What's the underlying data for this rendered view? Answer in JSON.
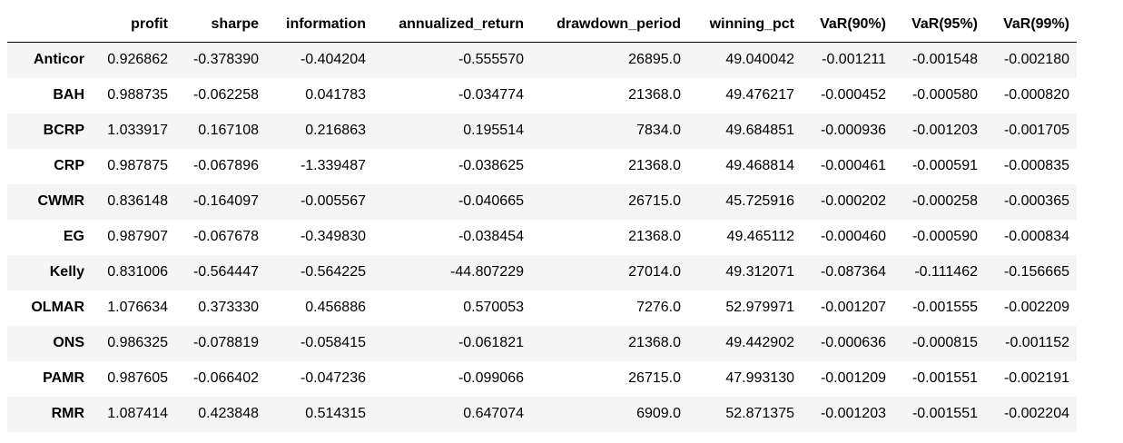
{
  "table": {
    "columns": [
      "",
      "profit",
      "sharpe",
      "information",
      "annualized_return",
      "drawdown_period",
      "winning_pct",
      "VaR(90%)",
      "VaR(95%)",
      "VaR(99%)"
    ],
    "rows": [
      {
        "index": "Anticor",
        "values": [
          "0.926862",
          "-0.378390",
          "-0.404204",
          "-0.555570",
          "26895.0",
          "49.040042",
          "-0.001211",
          "-0.001548",
          "-0.002180"
        ]
      },
      {
        "index": "BAH",
        "values": [
          "0.988735",
          "-0.062258",
          "0.041783",
          "-0.034774",
          "21368.0",
          "49.476217",
          "-0.000452",
          "-0.000580",
          "-0.000820"
        ]
      },
      {
        "index": "BCRP",
        "values": [
          "1.033917",
          "0.167108",
          "0.216863",
          "0.195514",
          "7834.0",
          "49.684851",
          "-0.000936",
          "-0.001203",
          "-0.001705"
        ]
      },
      {
        "index": "CRP",
        "values": [
          "0.987875",
          "-0.067896",
          "-1.339487",
          "-0.038625",
          "21368.0",
          "49.468814",
          "-0.000461",
          "-0.000591",
          "-0.000835"
        ]
      },
      {
        "index": "CWMR",
        "values": [
          "0.836148",
          "-0.164097",
          "-0.005567",
          "-0.040665",
          "26715.0",
          "45.725916",
          "-0.000202",
          "-0.000258",
          "-0.000365"
        ]
      },
      {
        "index": "EG",
        "values": [
          "0.987907",
          "-0.067678",
          "-0.349830",
          "-0.038454",
          "21368.0",
          "49.465112",
          "-0.000460",
          "-0.000590",
          "-0.000834"
        ]
      },
      {
        "index": "Kelly",
        "values": [
          "0.831006",
          "-0.564447",
          "-0.564225",
          "-44.807229",
          "27014.0",
          "49.312071",
          "-0.087364",
          "-0.111462",
          "-0.156665"
        ]
      },
      {
        "index": "OLMAR",
        "values": [
          "1.076634",
          "0.373330",
          "0.456886",
          "0.570053",
          "7276.0",
          "52.979971",
          "-0.001207",
          "-0.001555",
          "-0.002209"
        ]
      },
      {
        "index": "ONS",
        "values": [
          "0.986325",
          "-0.078819",
          "-0.058415",
          "-0.061821",
          "21368.0",
          "49.442902",
          "-0.000636",
          "-0.000815",
          "-0.001152"
        ]
      },
      {
        "index": "PAMR",
        "values": [
          "0.987605",
          "-0.066402",
          "-0.047236",
          "-0.099066",
          "26715.0",
          "47.993130",
          "-0.001209",
          "-0.001551",
          "-0.002191"
        ]
      },
      {
        "index": "RMR",
        "values": [
          "1.087414",
          "0.423848",
          "0.514315",
          "0.647074",
          "6909.0",
          "52.871375",
          "-0.001203",
          "-0.001551",
          "-0.002204"
        ]
      }
    ]
  }
}
